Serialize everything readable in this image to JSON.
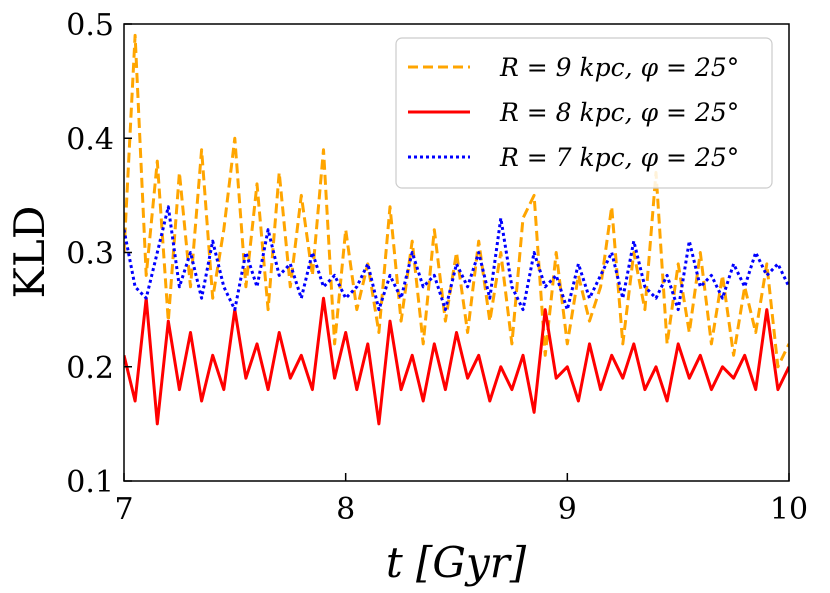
{
  "chart_data": {
    "type": "line",
    "title": "",
    "xlabel": "t [Gyr]",
    "ylabel": "KLD",
    "xlim": [
      7,
      10
    ],
    "ylim": [
      0.1,
      0.5
    ],
    "xticks": [
      7,
      8,
      9,
      10
    ],
    "xtick_labels": [
      "7",
      "8",
      "9",
      "10"
    ],
    "yticks": [
      0.1,
      0.2,
      0.3,
      0.4,
      0.5
    ],
    "ytick_labels": [
      "0.1",
      "0.2",
      "0.3",
      "0.4",
      "0.5"
    ],
    "grid": false,
    "legend_position": "top-right",
    "x": [
      7.0,
      7.05,
      7.1,
      7.15,
      7.2,
      7.25,
      7.3,
      7.35,
      7.4,
      7.45,
      7.5,
      7.55,
      7.6,
      7.65,
      7.7,
      7.75,
      7.8,
      7.85,
      7.9,
      7.95,
      8.0,
      8.05,
      8.1,
      8.15,
      8.2,
      8.25,
      8.3,
      8.35,
      8.4,
      8.45,
      8.5,
      8.55,
      8.6,
      8.65,
      8.7,
      8.75,
      8.8,
      8.85,
      8.9,
      8.95,
      9.0,
      9.05,
      9.1,
      9.15,
      9.2,
      9.25,
      9.3,
      9.35,
      9.4,
      9.45,
      9.5,
      9.55,
      9.6,
      9.65,
      9.7,
      9.75,
      9.8,
      9.85,
      9.9,
      9.95,
      10.0
    ],
    "series": [
      {
        "name": "R = 9 kpc, φ = 25°",
        "color": "#FFA500",
        "style": "dashed",
        "values": [
          0.3,
          0.49,
          0.28,
          0.38,
          0.24,
          0.37,
          0.27,
          0.39,
          0.26,
          0.32,
          0.4,
          0.27,
          0.36,
          0.25,
          0.37,
          0.27,
          0.35,
          0.28,
          0.39,
          0.22,
          0.32,
          0.25,
          0.29,
          0.23,
          0.34,
          0.24,
          0.31,
          0.22,
          0.32,
          0.24,
          0.3,
          0.23,
          0.31,
          0.24,
          0.3,
          0.22,
          0.33,
          0.35,
          0.21,
          0.3,
          0.22,
          0.28,
          0.24,
          0.27,
          0.34,
          0.22,
          0.3,
          0.25,
          0.37,
          0.22,
          0.29,
          0.23,
          0.3,
          0.22,
          0.28,
          0.21,
          0.27,
          0.23,
          0.29,
          0.2,
          0.22
        ]
      },
      {
        "name": "R = 8 kpc, φ = 25°",
        "color": "#FF0000",
        "style": "solid",
        "values": [
          0.21,
          0.17,
          0.26,
          0.15,
          0.24,
          0.18,
          0.23,
          0.17,
          0.21,
          0.18,
          0.25,
          0.19,
          0.22,
          0.18,
          0.23,
          0.19,
          0.21,
          0.18,
          0.26,
          0.19,
          0.23,
          0.18,
          0.22,
          0.15,
          0.24,
          0.18,
          0.21,
          0.17,
          0.22,
          0.18,
          0.23,
          0.19,
          0.21,
          0.17,
          0.2,
          0.18,
          0.21,
          0.16,
          0.25,
          0.19,
          0.2,
          0.17,
          0.22,
          0.18,
          0.21,
          0.19,
          0.22,
          0.18,
          0.2,
          0.17,
          0.22,
          0.19,
          0.21,
          0.18,
          0.2,
          0.19,
          0.21,
          0.18,
          0.25,
          0.18,
          0.2
        ]
      },
      {
        "name": "R = 7 kpc, φ = 25°",
        "color": "#0000FF",
        "style": "dotted",
        "values": [
          0.32,
          0.27,
          0.26,
          0.3,
          0.34,
          0.27,
          0.3,
          0.26,
          0.31,
          0.27,
          0.25,
          0.3,
          0.27,
          0.32,
          0.28,
          0.29,
          0.26,
          0.3,
          0.27,
          0.28,
          0.26,
          0.27,
          0.29,
          0.25,
          0.28,
          0.26,
          0.3,
          0.27,
          0.28,
          0.25,
          0.29,
          0.27,
          0.3,
          0.26,
          0.33,
          0.27,
          0.25,
          0.3,
          0.27,
          0.28,
          0.25,
          0.29,
          0.26,
          0.28,
          0.3,
          0.26,
          0.31,
          0.27,
          0.26,
          0.28,
          0.25,
          0.31,
          0.27,
          0.28,
          0.26,
          0.29,
          0.27,
          0.3,
          0.28,
          0.29,
          0.27
        ]
      }
    ]
  }
}
